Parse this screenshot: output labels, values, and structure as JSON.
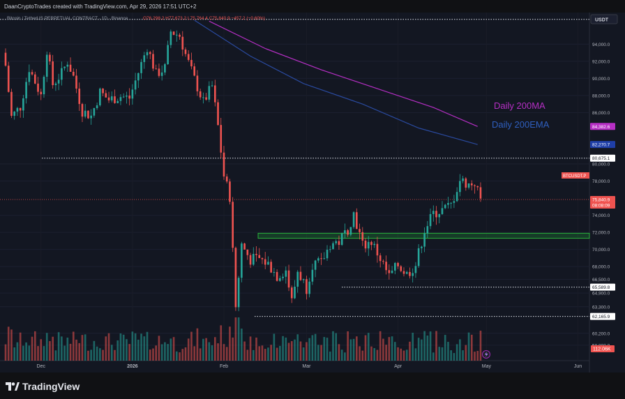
{
  "watermark": "DaanCryptoTrades created with TradingView.com, Apr 29, 2026 17:51 UTC+2",
  "legend": {
    "symbol": "Bitcoin / TetherUS PERPETUAL CONTRACT · 1D · Binance",
    "ohlc": "O76,298.2 H77,673.2 L75,764.4 C75,840.9 −457.2 (−0.60%)"
  },
  "currency_button": "USDT",
  "brand": "TradingView",
  "annotations": [
    {
      "text": "Daily 200MA",
      "color": "#b62fc5"
    },
    {
      "text": "Daily 200EMA",
      "color": "#2f5fbf"
    }
  ],
  "colors": {
    "background": "#131722",
    "bull": "#26a69a",
    "bear": "#ef5350",
    "ma200": "#b62fc5",
    "ema200": "#2a4a9f",
    "support_zone": "#1f9d3a"
  },
  "chart_data": {
    "type": "candlestick",
    "title": "",
    "y_axis_ticks": [
      "94,000.0",
      "92,000.0",
      "90,000.0",
      "88,000.0",
      "86,000.0",
      "80,000.0",
      "78,000.0",
      "74,000.0",
      "72,000.0",
      "70,000.0",
      "68,000.0",
      "66,500.0",
      "64,900.0",
      "63,300.0",
      "60,200.0",
      "58,800.0"
    ],
    "x_axis_ticks": [
      "Dec",
      "2026",
      "Feb",
      "Mar",
      "Apr",
      "May",
      "Jun"
    ],
    "price_labels": [
      {
        "text": "84,382.6",
        "value": 84382.6,
        "color": "#b62fc5"
      },
      {
        "text": "82,270.7",
        "value": 82270.7,
        "color": "#1f3fa8"
      },
      {
        "text": "80,675.1",
        "value": 80675.1,
        "color": "#ffffff"
      },
      {
        "text": "75,840.9",
        "value": 75840.9,
        "color": "#ef5350"
      },
      {
        "text": "65,589.8",
        "value": 65589.8,
        "color": "#ffffff"
      },
      {
        "text": "62,165.9",
        "value": 62165.9,
        "color": "#ffffff"
      }
    ],
    "symbol_tag": "BTCUSDT.P",
    "countdown": "08:08:09",
    "volume_label": "112.06K",
    "horizontal_levels": [
      {
        "value": 96900,
        "style": "dotted"
      },
      {
        "value": 80675.1,
        "style": "dotted"
      },
      {
        "value": 65589.8,
        "style": "dotted"
      },
      {
        "value": 62165.9,
        "style": "dotted"
      }
    ],
    "support_zone": [
      71300,
      71900
    ],
    "current_price": 75840.9,
    "x_range": [
      "2025-11-19",
      "2026-06-03"
    ],
    "y_range_visible": [
      57000,
      97700
    ],
    "close_series": [
      [
        "2025-11-19",
        91500
      ],
      [
        "2025-11-21",
        85500
      ],
      [
        "2025-11-24",
        86700
      ],
      [
        "2025-11-27",
        91200
      ],
      [
        "2025-12-01",
        88000
      ],
      [
        "2025-12-03",
        93400
      ],
      [
        "2025-12-05",
        89300
      ],
      [
        "2025-12-08",
        90600
      ],
      [
        "2025-12-10",
        92000
      ],
      [
        "2025-12-12",
        90200
      ],
      [
        "2025-12-15",
        86200
      ],
      [
        "2025-12-18",
        85600
      ],
      [
        "2025-12-21",
        88400
      ],
      [
        "2025-12-24",
        87500
      ],
      [
        "2025-12-28",
        87900
      ],
      [
        "2025-12-31",
        87700
      ],
      [
        "2026-01-03",
        90700
      ],
      [
        "2026-01-06",
        93700
      ],
      [
        "2026-01-09",
        90500
      ],
      [
        "2026-01-12",
        91200
      ],
      [
        "2026-01-14",
        95500
      ],
      [
        "2026-01-17",
        95000
      ],
      [
        "2026-01-19",
        92800
      ],
      [
        "2026-01-22",
        89900
      ],
      [
        "2026-01-25",
        87200
      ],
      [
        "2026-01-28",
        89100
      ],
      [
        "2026-01-30",
        84400
      ],
      [
        "2026-02-01",
        78600
      ],
      [
        "2026-02-03",
        76200
      ],
      [
        "2026-02-05",
        63300
      ],
      [
        "2026-02-07",
        70600
      ],
      [
        "2026-02-10",
        68800
      ],
      [
        "2026-02-13",
        68900
      ],
      [
        "2026-02-16",
        68300
      ],
      [
        "2026-02-19",
        66900
      ],
      [
        "2026-02-22",
        67600
      ],
      [
        "2026-02-24",
        63900
      ],
      [
        "2026-02-26",
        67500
      ],
      [
        "2026-03-01",
        65500
      ],
      [
        "2026-03-03",
        68300
      ],
      [
        "2026-03-06",
        68400
      ],
      [
        "2026-03-09",
        70600
      ],
      [
        "2026-03-12",
        70900
      ],
      [
        "2026-03-15",
        72400
      ],
      [
        "2026-03-17",
        74200
      ],
      [
        "2026-03-20",
        70500
      ],
      [
        "2026-03-23",
        70900
      ],
      [
        "2026-03-26",
        68900
      ],
      [
        "2026-03-29",
        66800
      ],
      [
        "2026-04-01",
        68200
      ],
      [
        "2026-04-04",
        67100
      ],
      [
        "2026-04-07",
        68200
      ],
      [
        "2026-04-10",
        72300
      ],
      [
        "2026-04-13",
        74200
      ],
      [
        "2026-04-16",
        74600
      ],
      [
        "2026-04-19",
        75200
      ],
      [
        "2026-04-22",
        78100
      ],
      [
        "2026-04-25",
        77600
      ],
      [
        "2026-04-27",
        77800
      ],
      [
        "2026-04-29",
        75840.9
      ]
    ],
    "ma_200": [
      [
        "2026-01-27",
        96700
      ],
      [
        "2026-02-15",
        93500
      ],
      [
        "2026-03-06",
        91000
      ],
      [
        "2026-03-25",
        88800
      ],
      [
        "2026-04-13",
        86600
      ],
      [
        "2026-04-28",
        84382.6
      ]
    ],
    "ema_200": [
      [
        "2026-01-22",
        96800
      ],
      [
        "2026-02-10",
        92600
      ],
      [
        "2026-02-28",
        89400
      ],
      [
        "2026-03-20",
        87000
      ],
      [
        "2026-04-08",
        84200
      ],
      [
        "2026-04-28",
        82270.7
      ]
    ]
  }
}
